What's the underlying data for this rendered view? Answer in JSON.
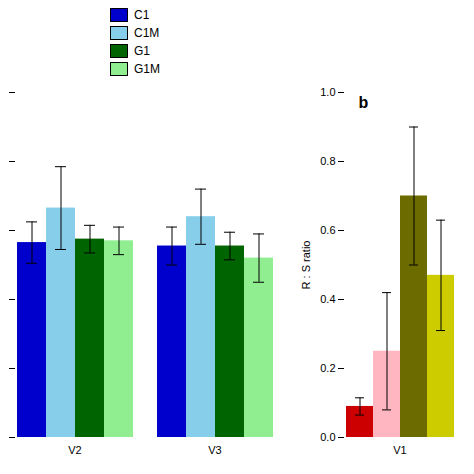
{
  "chart_data": [
    {
      "type": "bar",
      "categories": [
        "V2",
        "V3"
      ],
      "series": [
        {
          "name": "C1",
          "color": "#0000cc",
          "values": [
            0.565,
            0.555
          ],
          "errors": [
            0.06,
            0.055
          ]
        },
        {
          "name": "C1M",
          "color": "#87ceeb",
          "values": [
            0.665,
            0.64
          ],
          "errors": [
            0.12,
            0.08
          ]
        },
        {
          "name": "G1",
          "color": "#006400",
          "values": [
            0.575,
            0.555
          ],
          "errors": [
            0.04,
            0.04
          ]
        },
        {
          "name": "G1M",
          "color": "#90ee90",
          "values": [
            0.57,
            0.52
          ],
          "errors": [
            0.04,
            0.07
          ]
        }
      ],
      "ylim": [
        0.0,
        1.0
      ],
      "yticks": [
        0.0,
        0.2,
        0.4,
        0.6,
        0.8,
        1.0
      ],
      "tick_labels": "x",
      "legend": "top"
    },
    {
      "type": "bar",
      "categories": [
        "V1"
      ],
      "series": [
        {
          "name": "C1",
          "color": "#cc0000",
          "values": [
            0.09
          ],
          "errors": [
            0.025
          ]
        },
        {
          "name": "C1M",
          "color": "#ffb6c1",
          "values": [
            0.25
          ],
          "errors": [
            0.17
          ]
        },
        {
          "name": "G1",
          "color": "#6b6b00",
          "values": [
            0.7
          ],
          "errors": [
            0.2
          ]
        },
        {
          "name": "G1M",
          "color": "#cccc00",
          "values": [
            0.47
          ],
          "errors": [
            0.16
          ]
        }
      ],
      "ylabel": "R : S ratio",
      "ylim": [
        0.0,
        1.0
      ],
      "yticks": [
        {
          "value": 0.0,
          "label": "0.0"
        },
        0.2,
        0.4,
        0.6,
        0.8,
        {
          "value": 1.0,
          "label": "1.0"
        }
      ],
      "annotations": [
        "b"
      ]
    }
  ]
}
